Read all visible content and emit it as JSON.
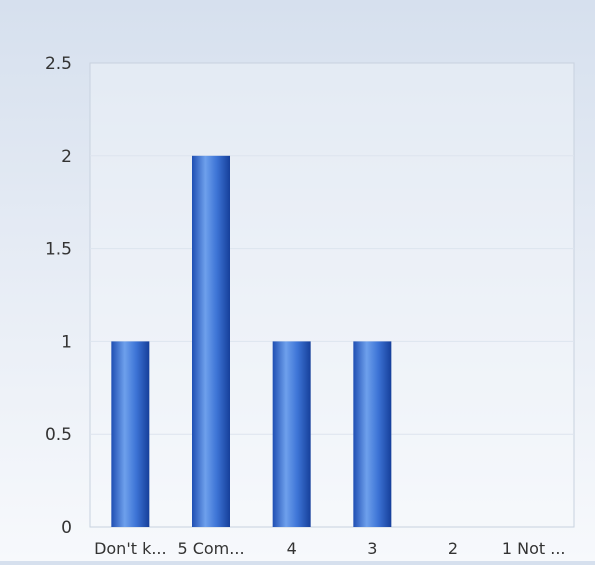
{
  "chart_data": {
    "type": "bar",
    "categories": [
      "Don't k...",
      "5 Com...",
      "4",
      "3",
      "2",
      "1 Not ..."
    ],
    "values": [
      1,
      2,
      1,
      1,
      0,
      0
    ],
    "ylim": [
      0,
      2.5
    ],
    "yticks": [
      "0",
      "0.5",
      "1",
      "1.5",
      "2",
      "2.5"
    ],
    "title": "",
    "xlabel": "",
    "ylabel": "",
    "grid": true,
    "legend": "none",
    "colors": {
      "bar_dark": "#1f4fb3",
      "bar_light": "#6ea0ec",
      "grid": "#dde4ee",
      "axis": "#c8d2df",
      "text": "#333333"
    }
  }
}
